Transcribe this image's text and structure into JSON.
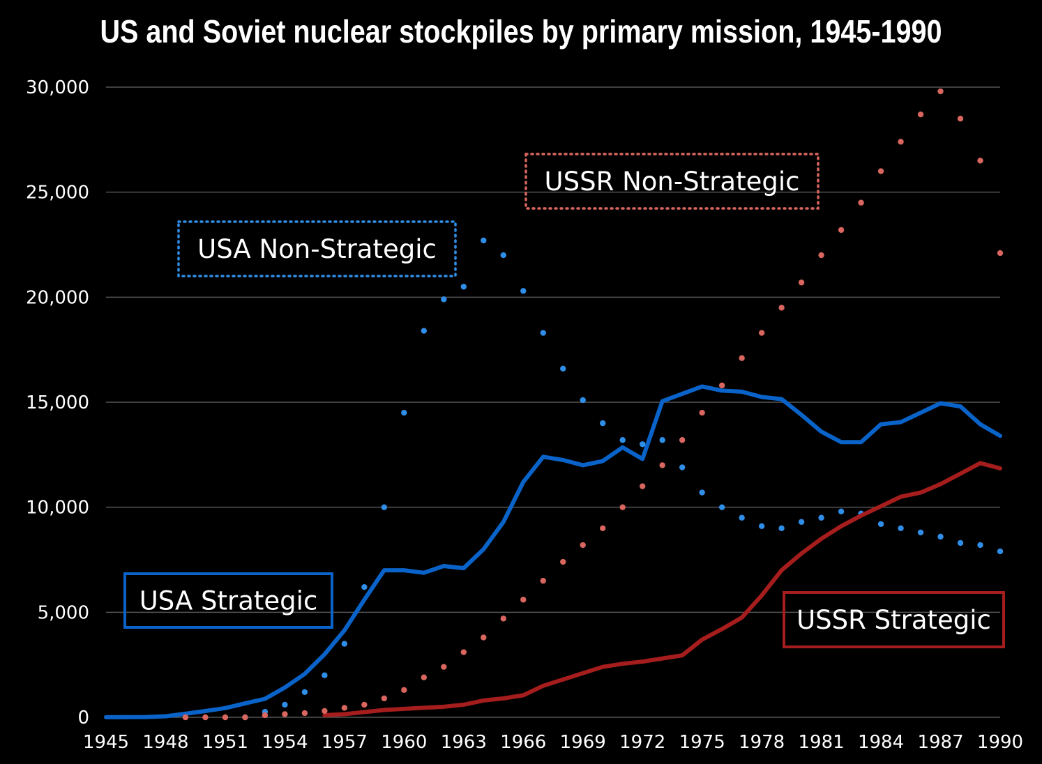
{
  "chart_data": {
    "type": "line",
    "title": "US and Soviet nuclear stockpiles by primary mission, 1945-1990",
    "xlabel": "",
    "ylabel": "",
    "xlim": [
      1945,
      1990
    ],
    "ylim": [
      0,
      30000
    ],
    "x_ticks": [
      "1945",
      "1948",
      "1951",
      "1954",
      "1957",
      "1960",
      "1963",
      "1966",
      "1969",
      "1972",
      "1975",
      "1978",
      "1981",
      "1984",
      "1987",
      "1990"
    ],
    "y_ticks": [
      "0",
      "5,000",
      "10,000",
      "15,000",
      "20,000",
      "25,000",
      "30,000"
    ],
    "grid": true,
    "colors": {
      "usa_strategic": "#0a63c9",
      "usa_non_strategic": "#2f8ee8",
      "ussr_strategic": "#a51d1d",
      "ussr_non_strategic": "#d9665f",
      "grid": "#555555"
    },
    "series": [
      {
        "name": "USA Strategic",
        "style": "solid",
        "x": [
          1945,
          1946,
          1947,
          1948,
          1949,
          1950,
          1951,
          1952,
          1953,
          1954,
          1955,
          1956,
          1957,
          1958,
          1959,
          1960,
          1961,
          1962,
          1963,
          1964,
          1965,
          1966,
          1967,
          1968,
          1969,
          1970,
          1971,
          1972,
          1973,
          1974,
          1975,
          1976,
          1977,
          1978,
          1979,
          1980,
          1981,
          1982,
          1983,
          1984,
          1985,
          1986,
          1987,
          1988,
          1989,
          1990
        ],
        "values": [
          2,
          9,
          13,
          50,
          170,
          300,
          438,
          660,
          878,
          1418,
          2063,
          3000,
          4140,
          5600,
          7000,
          7000,
          6880,
          7200,
          7100,
          8000,
          9300,
          11200,
          12400,
          12250,
          12000,
          12200,
          12850,
          12300,
          15050,
          15400,
          15750,
          15550,
          15500,
          15250,
          15150,
          14400,
          13600,
          13100,
          13100,
          13950,
          14050,
          14500,
          14950,
          14800,
          13950,
          13400
        ]
      },
      {
        "name": "USA Non-Strategic",
        "style": "dotted",
        "x": [
          1952,
          1953,
          1954,
          1955,
          1956,
          1957,
          1958,
          1959,
          1960,
          1961,
          1962,
          1963,
          1964,
          1965,
          1966,
          1967,
          1968,
          1969,
          1970,
          1971,
          1972,
          1973,
          1974,
          1975,
          1976,
          1977,
          1978,
          1979,
          1980,
          1981,
          1982,
          1983,
          1984,
          1985,
          1986,
          1987,
          1988,
          1989,
          1990
        ],
        "values": [
          0,
          260,
          600,
          1200,
          2000,
          3500,
          6200,
          10000,
          14500,
          18400,
          19900,
          20500,
          22700,
          22000,
          20300,
          18300,
          16600,
          15100,
          14000,
          13200,
          13000,
          13200,
          11900,
          10700,
          10000,
          9500,
          9100,
          9000,
          9300,
          9500,
          9800,
          9700,
          9200,
          9000,
          8800,
          8600,
          8300,
          8200,
          7900
        ]
      },
      {
        "name": "USSR Strategic",
        "style": "solid",
        "x": [
          1956,
          1957,
          1958,
          1959,
          1960,
          1961,
          1962,
          1963,
          1964,
          1965,
          1966,
          1967,
          1968,
          1969,
          1970,
          1971,
          1972,
          1973,
          1974,
          1975,
          1976,
          1977,
          1978,
          1979,
          1980,
          1981,
          1982,
          1983,
          1984,
          1985,
          1986,
          1987,
          1988,
          1989,
          1990
        ],
        "values": [
          100,
          150,
          250,
          350,
          400,
          450,
          500,
          600,
          800,
          900,
          1050,
          1500,
          1800,
          2100,
          2400,
          2550,
          2650,
          2800,
          2950,
          3700,
          4200,
          4750,
          5800,
          7000,
          7800,
          8500,
          9100,
          9600,
          10050,
          10500,
          10700,
          11100,
          11600,
          12100,
          11850
        ]
      },
      {
        "name": "USSR Non-Strategic",
        "style": "dotted",
        "x": [
          1949,
          1950,
          1951,
          1952,
          1953,
          1954,
          1955,
          1956,
          1957,
          1958,
          1959,
          1960,
          1961,
          1962,
          1963,
          1964,
          1965,
          1966,
          1967,
          1968,
          1969,
          1970,
          1971,
          1972,
          1973,
          1974,
          1975,
          1976,
          1977,
          1978,
          1979,
          1980,
          1981,
          1982,
          1983,
          1984,
          1985,
          1986,
          1987,
          1988,
          1989,
          1990
        ],
        "values": [
          0,
          0,
          0,
          0,
          100,
          150,
          200,
          300,
          450,
          600,
          900,
          1300,
          1900,
          2400,
          3100,
          3800,
          4700,
          5600,
          6500,
          7400,
          8200,
          9000,
          10000,
          11000,
          12000,
          13200,
          14500,
          15800,
          17100,
          18300,
          19500,
          20700,
          22000,
          23200,
          24500,
          26000,
          27400,
          28700,
          29800,
          28500,
          26500,
          22100
        ]
      }
    ],
    "annotations": [
      {
        "text": "USA Non-Strategic",
        "series": "USA Non-Strategic",
        "border": "dotted"
      },
      {
        "text": "USSR Non-Strategic",
        "series": "USSR Non-Strategic",
        "border": "dotted"
      },
      {
        "text": "USA Strategic",
        "series": "USA Strategic",
        "border": "solid"
      },
      {
        "text": "USSR Strategic",
        "series": "USSR Strategic",
        "border": "solid"
      }
    ]
  }
}
